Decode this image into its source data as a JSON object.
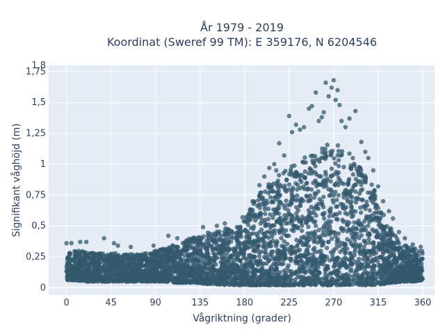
{
  "chart_data": {
    "type": "scatter",
    "title_line1": "År 1979 - 2019",
    "title_line2": "Koordinat (Sweref 99 TM): E 359176, N 6204546",
    "xlabel": "Vågriktning (grader)",
    "ylabel": "Signifikant våghöjd (m)",
    "xlim": [
      -18,
      372
    ],
    "ylim": [
      -0.06,
      1.8
    ],
    "x_ticks": [
      0,
      45,
      90,
      135,
      180,
      225,
      270,
      315,
      360
    ],
    "x_tick_labels": [
      "0",
      "45",
      "90",
      "135",
      "180",
      "225",
      "270",
      "315",
      "360"
    ],
    "y_ticks": [
      0,
      0.25,
      0.5,
      0.75,
      1,
      1.25,
      1.5,
      1.75
    ],
    "y_tick_labels": [
      "0",
      "0,25",
      "0,5",
      "0,75",
      "1",
      "1,25",
      "1,5",
      "1,75"
    ],
    "y_top_label": "1,8",
    "grid": true,
    "background_color": "#e5ecf6",
    "marker_color": "#34586e",
    "envelope": {
      "direction": [
        0,
        10,
        20,
        30,
        40,
        50,
        60,
        70,
        80,
        90,
        100,
        110,
        120,
        130,
        140,
        150,
        160,
        170,
        180,
        190,
        200,
        210,
        220,
        230,
        240,
        250,
        260,
        270,
        280,
        290,
        300,
        310,
        320,
        330,
        340,
        350,
        360
      ],
      "lower_height": [
        0.06,
        0.06,
        0.05,
        0.05,
        0.05,
        0.05,
        0.05,
        0.05,
        0.05,
        0.05,
        0.05,
        0.04,
        0.04,
        0.04,
        0.03,
        0.03,
        0.02,
        0.02,
        0.02,
        0.02,
        0.02,
        0.02,
        0.02,
        0.02,
        0.02,
        0.02,
        0.02,
        0.02,
        0.02,
        0.02,
        0.02,
        0.02,
        0.03,
        0.04,
        0.05,
        0.05,
        0.06
      ],
      "upper_height": [
        0.3,
        0.3,
        0.29,
        0.29,
        0.28,
        0.28,
        0.27,
        0.27,
        0.28,
        0.3,
        0.32,
        0.35,
        0.38,
        0.42,
        0.44,
        0.46,
        0.48,
        0.5,
        0.55,
        0.7,
        0.82,
        0.88,
        0.95,
        1.0,
        1.05,
        1.1,
        1.15,
        1.17,
        1.15,
        1.05,
        0.95,
        0.82,
        0.6,
        0.45,
        0.36,
        0.32,
        0.3
      ]
    },
    "outliers": [
      {
        "x": 0,
        "y": 0.36
      },
      {
        "x": 5,
        "y": 0.36
      },
      {
        "x": 14,
        "y": 0.37
      },
      {
        "x": 20,
        "y": 0.37
      },
      {
        "x": 38,
        "y": 0.4
      },
      {
        "x": 48,
        "y": 0.36
      },
      {
        "x": 52,
        "y": 0.34
      },
      {
        "x": 65,
        "y": 0.33
      },
      {
        "x": 88,
        "y": 0.34
      },
      {
        "x": 103,
        "y": 0.42
      },
      {
        "x": 112,
        "y": 0.4
      },
      {
        "x": 138,
        "y": 0.49
      },
      {
        "x": 152,
        "y": 0.5
      },
      {
        "x": 160,
        "y": 0.52
      },
      {
        "x": 178,
        "y": 0.57
      },
      {
        "x": 188,
        "y": 0.7
      },
      {
        "x": 195,
        "y": 0.83
      },
      {
        "x": 200,
        "y": 0.9
      },
      {
        "x": 205,
        "y": 0.97
      },
      {
        "x": 210,
        "y": 1.0
      },
      {
        "x": 212,
        "y": 0.95
      },
      {
        "x": 215,
        "y": 1.17
      },
      {
        "x": 220,
        "y": 1.07
      },
      {
        "x": 225,
        "y": 1.39
      },
      {
        "x": 228,
        "y": 1.26
      },
      {
        "x": 232,
        "y": 1.32
      },
      {
        "x": 236,
        "y": 1.28
      },
      {
        "x": 240,
        "y": 1.3
      },
      {
        "x": 245,
        "y": 1.45
      },
      {
        "x": 248,
        "y": 1.47
      },
      {
        "x": 252,
        "y": 1.58
      },
      {
        "x": 255,
        "y": 1.35
      },
      {
        "x": 258,
        "y": 1.38
      },
      {
        "x": 260,
        "y": 1.42
      },
      {
        "x": 262,
        "y": 1.66
      },
      {
        "x": 265,
        "y": 1.55
      },
      {
        "x": 268,
        "y": 1.62
      },
      {
        "x": 270,
        "y": 1.68
      },
      {
        "x": 272,
        "y": 1.52
      },
      {
        "x": 274,
        "y": 1.6
      },
      {
        "x": 276,
        "y": 1.48
      },
      {
        "x": 278,
        "y": 1.35
      },
      {
        "x": 282,
        "y": 1.3
      },
      {
        "x": 286,
        "y": 1.37
      },
      {
        "x": 292,
        "y": 1.43
      },
      {
        "x": 298,
        "y": 1.18
      },
      {
        "x": 302,
        "y": 1.1
      },
      {
        "x": 305,
        "y": 1.05
      },
      {
        "x": 310,
        "y": 0.95
      },
      {
        "x": 315,
        "y": 0.82
      },
      {
        "x": 320,
        "y": 0.7
      },
      {
        "x": 326,
        "y": 0.62
      },
      {
        "x": 330,
        "y": 0.56
      },
      {
        "x": 336,
        "y": 0.45
      },
      {
        "x": 342,
        "y": 0.4
      },
      {
        "x": 350,
        "y": 0.35
      },
      {
        "x": 358,
        "y": 0.33
      }
    ]
  }
}
